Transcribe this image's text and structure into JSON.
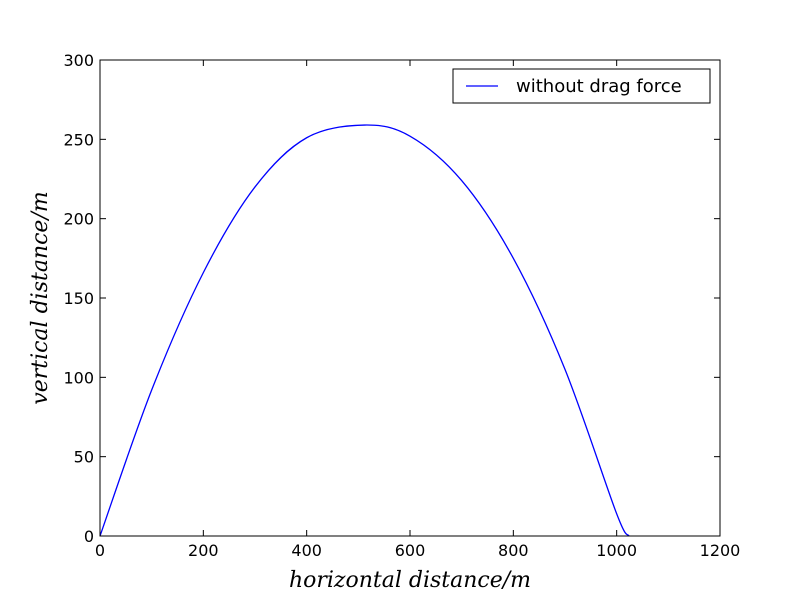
{
  "chart_data": {
    "type": "line",
    "title": "",
    "xlabel": "horizontal distance/m",
    "ylabel": "vertical distance/m",
    "xlim": [
      0,
      1200
    ],
    "ylim": [
      0,
      300
    ],
    "xticks": [
      0,
      200,
      400,
      600,
      800,
      1000,
      1200
    ],
    "yticks": [
      0,
      50,
      100,
      150,
      200,
      250,
      300
    ],
    "grid": false,
    "legend_position": "top-right",
    "series": [
      {
        "name": "without drag force",
        "color": "#0000ff",
        "x": [
          0,
          100,
          200,
          300,
          400,
          512,
          600,
          700,
          800,
          900,
          1000,
          1024
        ],
        "y": [
          0,
          92,
          166,
          220,
          251,
          259,
          252,
          224,
          175,
          105,
          14,
          0
        ]
      }
    ]
  }
}
